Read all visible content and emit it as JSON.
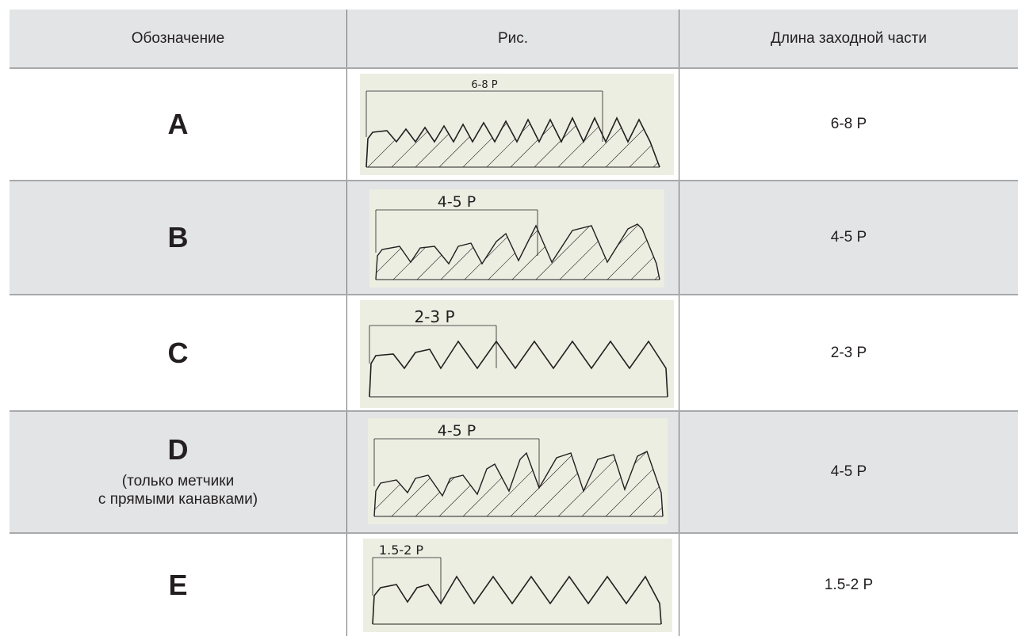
{
  "header": {
    "col1": "Обозначение",
    "col2": "Рис.",
    "col3": "Длина заходной части"
  },
  "rows": [
    {
      "letter": "A",
      "note": [],
      "figure_label": "6-8 P",
      "length": "6-8 P",
      "figure_hatched": true,
      "shaded": false
    },
    {
      "letter": "B",
      "note": [],
      "figure_label": "4-5 P",
      "length": "4-5 P",
      "figure_hatched": true,
      "shaded": true
    },
    {
      "letter": "C",
      "note": [],
      "figure_label": "2-3 P",
      "length": "2-3 P",
      "figure_hatched": false,
      "shaded": false
    },
    {
      "letter": "D",
      "note": [
        "(только метчики",
        "с прямыми канавками)"
      ],
      "figure_label": "4-5 P",
      "length": "4-5 P",
      "figure_hatched": true,
      "shaded": true
    },
    {
      "letter": "E",
      "note": [],
      "figure_label": "1.5-2 P",
      "length": "1.5-2 P",
      "figure_hatched": false,
      "shaded": false
    }
  ],
  "colors": {
    "header_bg": "#e3e4e5",
    "row_shade": "#e3e4e5",
    "figure_bg": "#eceee2",
    "line": "#231f20",
    "separator": "#a7a9ac"
  }
}
